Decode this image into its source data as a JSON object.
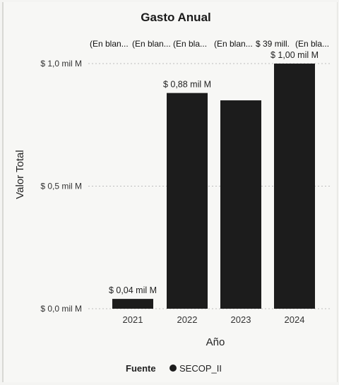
{
  "chart_data": {
    "type": "bar",
    "title": "Gasto Anual",
    "xlabel": "Año",
    "ylabel": "Valor Total",
    "categories": [
      "2021",
      "2022",
      "2023",
      "2024"
    ],
    "series": [
      {
        "name": "SECOP_II",
        "values": [
          0.04,
          0.88,
          0.85,
          1.0
        ]
      }
    ],
    "data_labels": [
      "$ 0,04 mil M",
      "$ 0,88 mil M",
      "",
      "$ 1,00 mil M"
    ],
    "top_labels": [
      "(En blan...",
      "(En blan...",
      "(En bla...",
      "(En blan...",
      "$ 39 mill.",
      "(En bla..."
    ],
    "y_ticks": [
      {
        "value": 0.0,
        "label": "$ 0,0 mil M"
      },
      {
        "value": 0.5,
        "label": "$ 0,5 mil M"
      },
      {
        "value": 1.0,
        "label": "$ 1,0 mil M"
      }
    ],
    "ylim": [
      0,
      1.0
    ],
    "grid": true,
    "legend": {
      "title": "Fuente",
      "position": "bottom",
      "items": [
        "SECOP_II"
      ]
    },
    "colors": {
      "bar": "#1c1c1c",
      "grid": "#bdbdbd",
      "background": "#f7f7f5"
    }
  }
}
